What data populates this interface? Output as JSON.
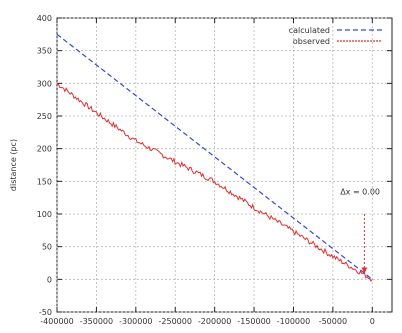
{
  "chart_data": {
    "type": "line",
    "title": "",
    "xlabel": "",
    "ylabel": "distance (pc)",
    "xlim": [
      -400000,
      25000
    ],
    "ylim": [
      -50,
      400
    ],
    "x_ticks": [
      -400000,
      -350000,
      -300000,
      -250000,
      -200000,
      -150000,
      -100000,
      -50000,
      0
    ],
    "x_tick_labels": [
      "-400000",
      "-350000",
      "-300000",
      "-250000",
      "-200000",
      "-150000",
      "-100000",
      "-50000",
      "0"
    ],
    "y_ticks": [
      -50,
      0,
      50,
      100,
      150,
      200,
      250,
      300,
      350,
      400
    ],
    "y_tick_labels": [
      "-50",
      "0",
      "50",
      "100",
      "150",
      "200",
      "250",
      "300",
      "350",
      "400"
    ],
    "grid": true,
    "legend_position": "top-right",
    "series": [
      {
        "name": "calculated",
        "color": "#3a48d8",
        "style": "dashed",
        "x": [
          -400000,
          0
        ],
        "y": [
          375,
          0
        ]
      },
      {
        "name": "observed",
        "color": "#e03030",
        "style": "noisy",
        "x": [
          -400000,
          -350000,
          -300000,
          -250000,
          -200000,
          -150000,
          -100000,
          -50000,
          0
        ],
        "y": [
          300,
          255,
          212,
          180,
          150,
          110,
          73,
          35,
          0
        ]
      }
    ],
    "annotation": {
      "text": "Δx = 0.00",
      "at_x": -10000,
      "at_y": 40
    }
  }
}
